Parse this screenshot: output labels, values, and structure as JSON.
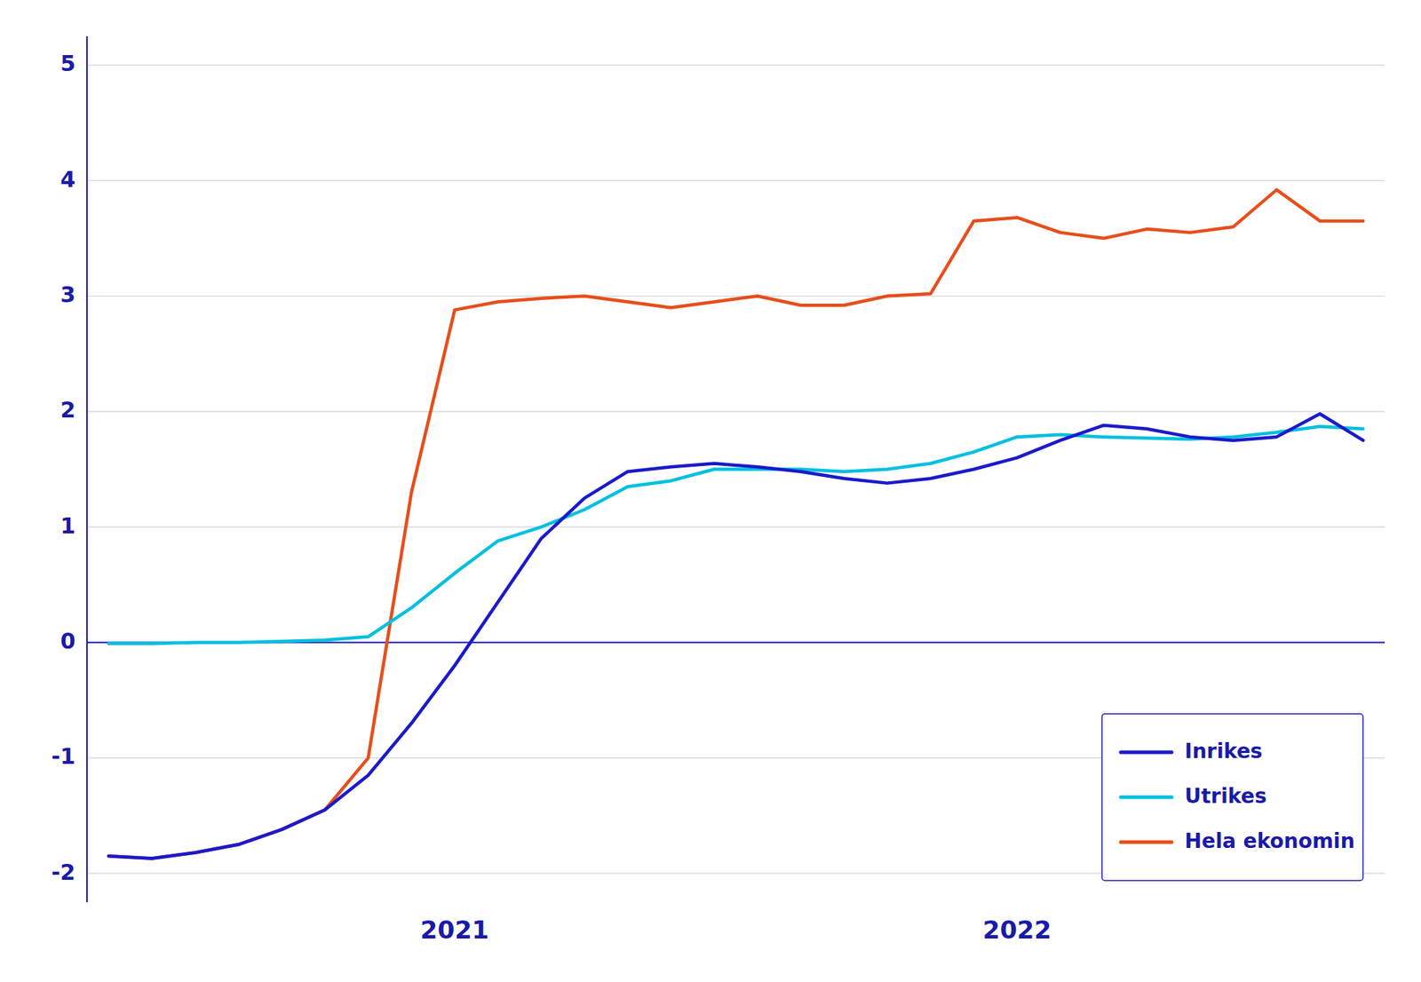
{
  "chart_data": {
    "type": "line",
    "categories": [
      null,
      null,
      null,
      null,
      null,
      null,
      null,
      null,
      "2021",
      null,
      null,
      null,
      null,
      null,
      null,
      null,
      null,
      null,
      null,
      null,
      null,
      "2022",
      null,
      null,
      null,
      null,
      null,
      null,
      null,
      null
    ],
    "series": [
      {
        "name": "Inrikes",
        "color": "#1a1acc",
        "values": [
          -1.85,
          -1.87,
          -1.82,
          -1.75,
          -1.62,
          -1.45,
          -1.15,
          -0.7,
          -0.2,
          0.35,
          0.9,
          1.25,
          1.48,
          1.52,
          1.55,
          1.52,
          1.48,
          1.42,
          1.38,
          1.42,
          1.5,
          1.6,
          1.75,
          1.88,
          1.85,
          1.78,
          1.75,
          1.78,
          1.98,
          1.75
        ]
      },
      {
        "name": "Utrikes",
        "color": "#00c0e0",
        "values": [
          -0.01,
          -0.01,
          0.0,
          0.0,
          0.01,
          0.02,
          0.05,
          0.3,
          0.6,
          0.88,
          1.0,
          1.15,
          1.35,
          1.4,
          1.5,
          1.5,
          1.5,
          1.48,
          1.5,
          1.55,
          1.65,
          1.78,
          1.8,
          1.78,
          1.77,
          1.76,
          1.78,
          1.82,
          1.87,
          1.85
        ]
      },
      {
        "name": "Hela ekonomin",
        "color": "#e84e1b",
        "values": [
          -1.85,
          -1.87,
          -1.82,
          -1.75,
          -1.62,
          -1.45,
          -1.0,
          1.3,
          2.88,
          2.95,
          2.98,
          3.0,
          2.95,
          2.9,
          2.95,
          3.0,
          2.92,
          2.92,
          3.0,
          3.02,
          3.65,
          3.68,
          3.55,
          3.5,
          3.58,
          3.55,
          3.6,
          3.92,
          3.65,
          3.65
        ]
      }
    ],
    "ylim": [
      -2.25,
      5.25
    ],
    "yticks": [
      -2,
      -1,
      0,
      1,
      2,
      3,
      4,
      5
    ],
    "grid": true,
    "legend": "lower right"
  }
}
